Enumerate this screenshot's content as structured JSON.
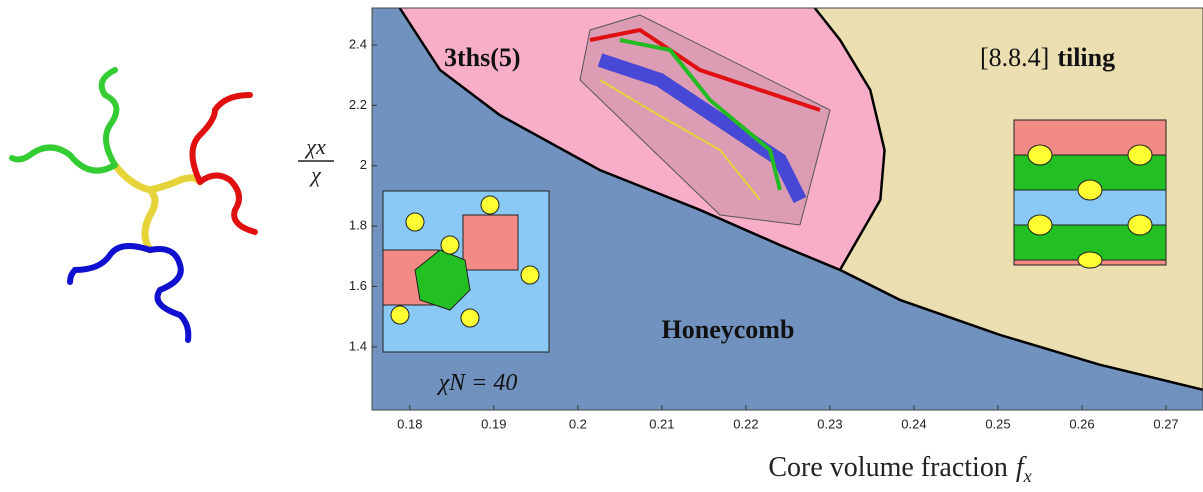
{
  "chart_data": {
    "type": "phase-diagram",
    "x_label": "Core volume fraction",
    "x_label_symbol": "f",
    "x_label_subscript": "x",
    "y_label_numerator": "χx",
    "y_label_denominator": "χ",
    "xlim": [
      0.1755,
      0.2744
    ],
    "ylim": [
      1.191,
      2.5225
    ],
    "xticks": [
      0.18,
      0.19,
      0.2,
      0.21,
      0.22,
      0.23,
      0.24,
      0.25,
      0.26,
      0.27
    ],
    "yticks": [
      1.4,
      1.6,
      1.8,
      2,
      2.2,
      2.4
    ],
    "background_color": "#7191be",
    "regions": [
      {
        "label": "Honeycomb",
        "color": "#7191be"
      },
      {
        "label": "3ths(5)",
        "color": "#f8aec8"
      },
      {
        "label": "[8.8.4]",
        "label_bold": "tiling",
        "color": "#ebdfb1"
      }
    ],
    "boundaries": [
      {
        "x": [
          0.1788,
          0.1836,
          0.1907,
          0.2026,
          0.2145,
          0.224,
          0.2312
        ],
        "y": [
          2.5225,
          2.317,
          2.168,
          1.986,
          1.854,
          1.738,
          1.655
        ]
      },
      {
        "x": [
          0.2312,
          0.236,
          0.2365,
          0.2348,
          0.2312,
          0.2282
        ],
        "y": [
          1.655,
          1.887,
          2.052,
          2.251,
          2.417,
          2.5225
        ]
      },
      {
        "x": [
          0.2312,
          0.2383,
          0.2502,
          0.2621,
          0.2744
        ],
        "y": [
          1.655,
          1.556,
          1.44,
          1.341,
          1.258
        ]
      }
    ],
    "annotation": "χN = 40"
  }
}
